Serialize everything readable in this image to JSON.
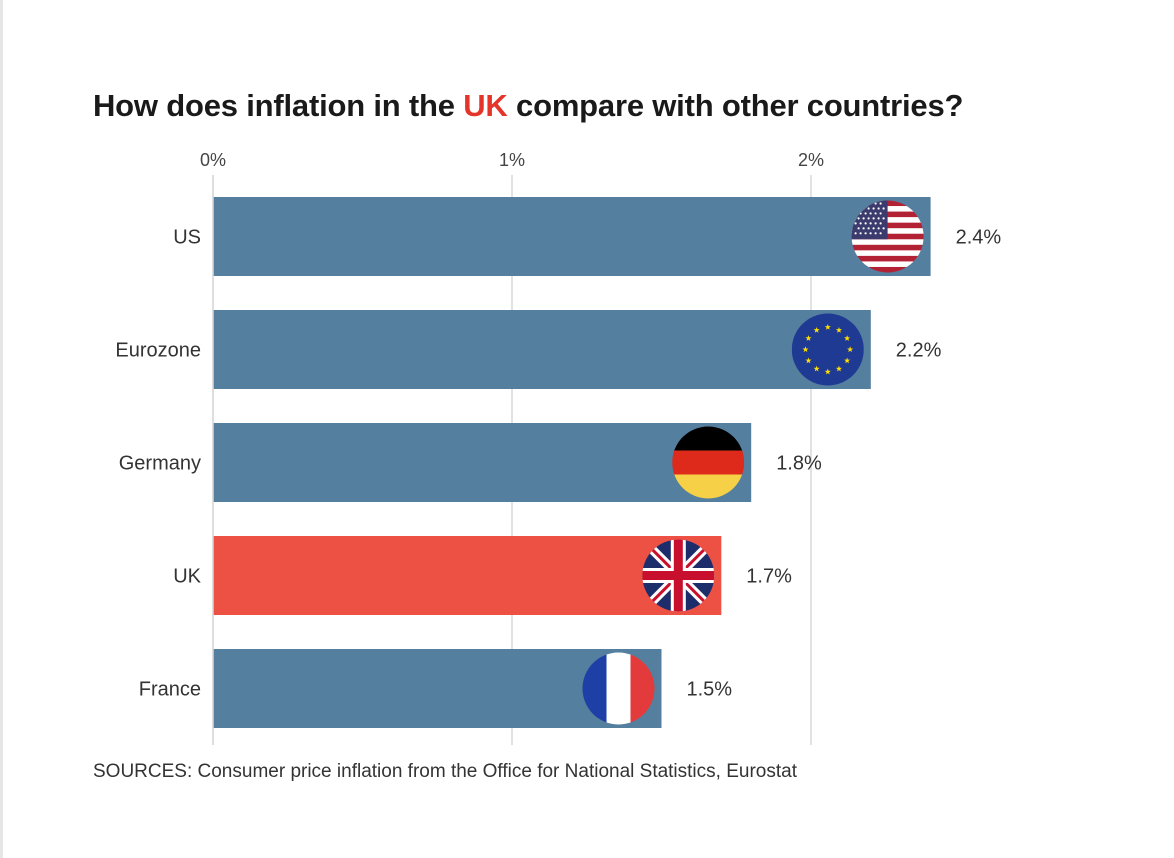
{
  "title": {
    "before": "How does inflation in the ",
    "highlight": "UK",
    "after": " compare with other countries?"
  },
  "source": "SOURCES: Consumer price inflation from the Office for National Statistics, Eurostat",
  "colors": {
    "bar": "#557f9f",
    "highlight_bar": "#ec5144",
    "title_highlight": "#e5352b",
    "gridline": "#d9d9d9"
  },
  "chart_data": {
    "type": "bar",
    "orientation": "horizontal",
    "categories": [
      "US",
      "Eurozone",
      "Germany",
      "UK",
      "France"
    ],
    "values": [
      2.4,
      2.2,
      1.8,
      1.7,
      1.5
    ],
    "value_labels": [
      "2.4%",
      "2.2%",
      "1.8%",
      "1.7%",
      "1.5%"
    ],
    "highlight": "UK",
    "flags": [
      "us-flag-icon",
      "eu-flag-icon",
      "germany-flag-icon",
      "uk-flag-icon",
      "france-flag-icon"
    ],
    "xlim": [
      0,
      2.4
    ],
    "xticks": [
      0,
      1,
      2
    ],
    "xtick_labels": [
      "0%",
      "1%",
      "2%"
    ],
    "x_axis_position": "top",
    "grid": true,
    "legend": "none"
  }
}
